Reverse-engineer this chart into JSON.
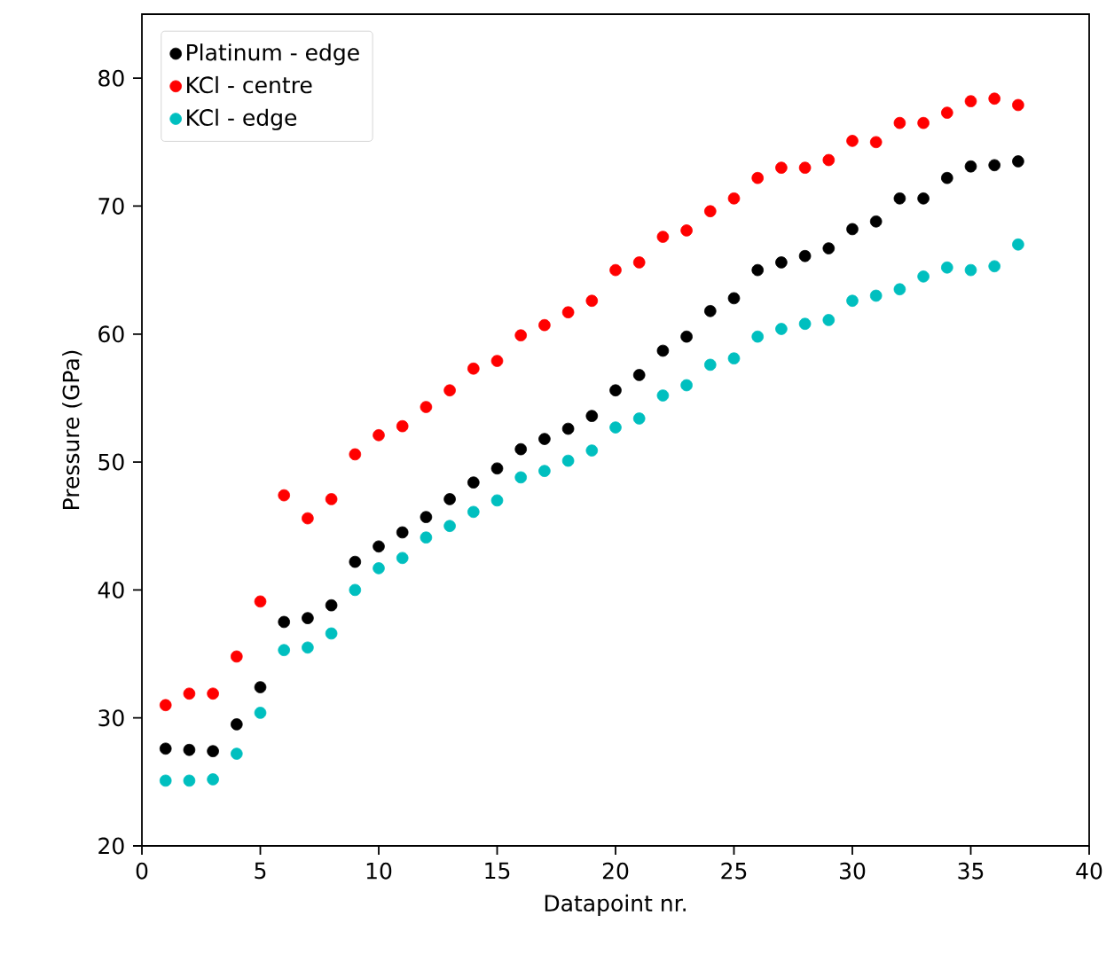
{
  "chart_data": {
    "type": "scatter",
    "xlabel": "Datapoint nr.",
    "ylabel": "Pressure (GPa)",
    "x": [
      1,
      2,
      3,
      4,
      5,
      6,
      7,
      8,
      9,
      10,
      11,
      12,
      13,
      14,
      15,
      16,
      17,
      18,
      19,
      20,
      21,
      22,
      23,
      24,
      25,
      26,
      27,
      28,
      29,
      30,
      31,
      32,
      33,
      34,
      35,
      36,
      37
    ],
    "series": [
      {
        "name": "Platinum - edge",
        "color": "#000000",
        "values": [
          27.6,
          27.5,
          27.4,
          29.5,
          32.4,
          37.5,
          37.8,
          38.8,
          42.2,
          43.4,
          44.5,
          45.7,
          47.1,
          48.4,
          49.5,
          51.0,
          51.8,
          52.6,
          53.6,
          55.6,
          56.8,
          58.7,
          59.8,
          61.8,
          62.8,
          65.0,
          65.6,
          66.1,
          66.7,
          68.2,
          68.8,
          70.6,
          70.6,
          72.2,
          73.1,
          73.2,
          73.5
        ]
      },
      {
        "name": "KCl - centre",
        "color": "#ff0000",
        "values": [
          31.0,
          31.9,
          31.9,
          34.8,
          39.1,
          47.4,
          45.6,
          47.1,
          50.6,
          52.1,
          52.8,
          54.3,
          55.6,
          57.3,
          57.9,
          59.9,
          60.7,
          61.7,
          62.6,
          65.0,
          65.6,
          67.6,
          68.1,
          69.6,
          70.6,
          72.2,
          73.0,
          73.0,
          73.6,
          75.1,
          75.0,
          76.5,
          76.5,
          77.3,
          78.2,
          78.4,
          77.9
        ]
      },
      {
        "name": "KCl - edge",
        "color": "#00bfbf",
        "values": [
          25.1,
          25.1,
          25.2,
          27.2,
          30.4,
          35.3,
          35.5,
          36.6,
          40.0,
          41.7,
          42.5,
          44.1,
          45.0,
          46.1,
          47.0,
          48.8,
          49.3,
          50.1,
          50.9,
          52.7,
          53.4,
          55.2,
          56.0,
          57.6,
          58.1,
          59.8,
          60.4,
          60.8,
          61.1,
          62.6,
          63.0,
          63.5,
          64.5,
          65.2,
          65.0,
          65.3,
          67.0
        ]
      }
    ],
    "xlim": [
      0,
      40
    ],
    "ylim": [
      20,
      85
    ],
    "xticks": [
      0,
      5,
      10,
      15,
      20,
      25,
      30,
      35,
      40
    ],
    "yticks": [
      20,
      30,
      40,
      50,
      60,
      70,
      80
    ],
    "legend": "top left",
    "grid": false
  }
}
